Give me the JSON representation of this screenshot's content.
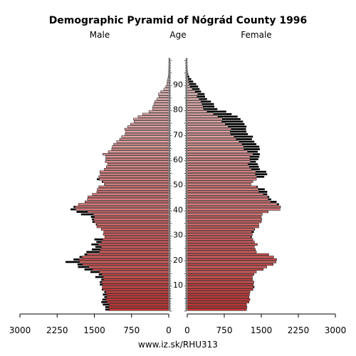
{
  "chart_data": {
    "type": "bar",
    "title": "Demographic Pyramid of Nógrád County 1996",
    "left_label": "Male",
    "center_label": "Age",
    "right_label": "Female",
    "source": "www.iz.sk/RHU313",
    "xlim": [
      0,
      3000
    ],
    "x_ticks_left": [
      "3000",
      "2250",
      "1500",
      "750",
      "0"
    ],
    "x_ticks_right": [
      "0",
      "750",
      "1500",
      "2250",
      "3000"
    ],
    "x_tick_values": [
      3000,
      2250,
      1500,
      750,
      0
    ],
    "age_ticks": [
      10,
      20,
      30,
      40,
      50,
      60,
      70,
      80,
      90
    ],
    "ages": [
      0,
      1,
      2,
      3,
      4,
      5,
      6,
      7,
      8,
      9,
      10,
      11,
      12,
      13,
      14,
      15,
      16,
      17,
      18,
      19,
      20,
      21,
      22,
      23,
      24,
      25,
      26,
      27,
      28,
      29,
      30,
      31,
      32,
      33,
      34,
      35,
      36,
      37,
      38,
      39,
      40,
      41,
      42,
      43,
      44,
      45,
      46,
      47,
      48,
      49,
      50,
      51,
      52,
      53,
      54,
      55,
      56,
      57,
      58,
      59,
      60,
      61,
      62,
      63,
      64,
      65,
      66,
      67,
      68,
      69,
      70,
      71,
      72,
      73,
      74,
      75,
      76,
      77,
      78,
      79,
      80,
      81,
      82,
      83,
      84,
      85,
      86,
      87,
      88,
      89,
      90,
      91,
      92,
      93,
      94,
      95,
      96,
      97,
      98,
      99,
      100
    ],
    "series": [
      {
        "name": "Male",
        "values": [
          1280,
          1280,
          1330,
          1360,
          1340,
          1300,
          1330,
          1300,
          1350,
          1340,
          1390,
          1390,
          1360,
          1480,
          1410,
          1580,
          1700,
          1830,
          1840,
          2080,
          1920,
          1800,
          1700,
          1660,
          1550,
          1480,
          1560,
          1460,
          1500,
          1290,
          1320,
          1310,
          1360,
          1450,
          1470,
          1540,
          1550,
          1570,
          1770,
          1860,
          1980,
          1920,
          1820,
          1690,
          1640,
          1630,
          1540,
          1450,
          1440,
          1410,
          1300,
          1350,
          1450,
          1410,
          1380,
          1390,
          1300,
          1260,
          1230,
          1280,
          1270,
          1270,
          1330,
          1220,
          1150,
          1140,
          1110,
          1050,
          990,
          950,
          880,
          870,
          890,
          830,
          770,
          700,
          710,
          620,
          530,
          400,
          330,
          320,
          300,
          280,
          240,
          200,
          210,
          160,
          100,
          60,
          40,
          30,
          20,
          10,
          5,
          4,
          3,
          2,
          1,
          1,
          1
        ],
        "color_base": "#cc3333",
        "color_top": "#eec8c8"
      },
      {
        "name": "Female",
        "values": [
          1200,
          1210,
          1200,
          1250,
          1270,
          1250,
          1260,
          1270,
          1330,
          1360,
          1340,
          1350,
          1320,
          1320,
          1350,
          1400,
          1540,
          1610,
          1740,
          1800,
          1810,
          1750,
          1650,
          1400,
          1380,
          1360,
          1420,
          1360,
          1330,
          1310,
          1320,
          1350,
          1370,
          1450,
          1450,
          1500,
          1510,
          1500,
          1520,
          1640,
          1880,
          1890,
          1860,
          1810,
          1700,
          1660,
          1620,
          1620,
          1570,
          1430,
          1290,
          1330,
          1400,
          1560,
          1620,
          1600,
          1470,
          1450,
          1430,
          1390,
          1440,
          1460,
          1470,
          1430,
          1470,
          1460,
          1400,
          1360,
          1310,
          1330,
          1230,
          1200,
          1190,
          1200,
          1160,
          1130,
          1080,
          1020,
          900,
          790,
          610,
          550,
          540,
          480,
          400,
          360,
          350,
          280,
          250,
          220,
          180,
          120,
          80,
          40,
          20,
          10,
          5,
          3,
          2,
          1,
          1
        ],
        "color_base": "#cc3333",
        "color_top": "#eec8c8"
      }
    ],
    "excess_color": "#000000"
  }
}
